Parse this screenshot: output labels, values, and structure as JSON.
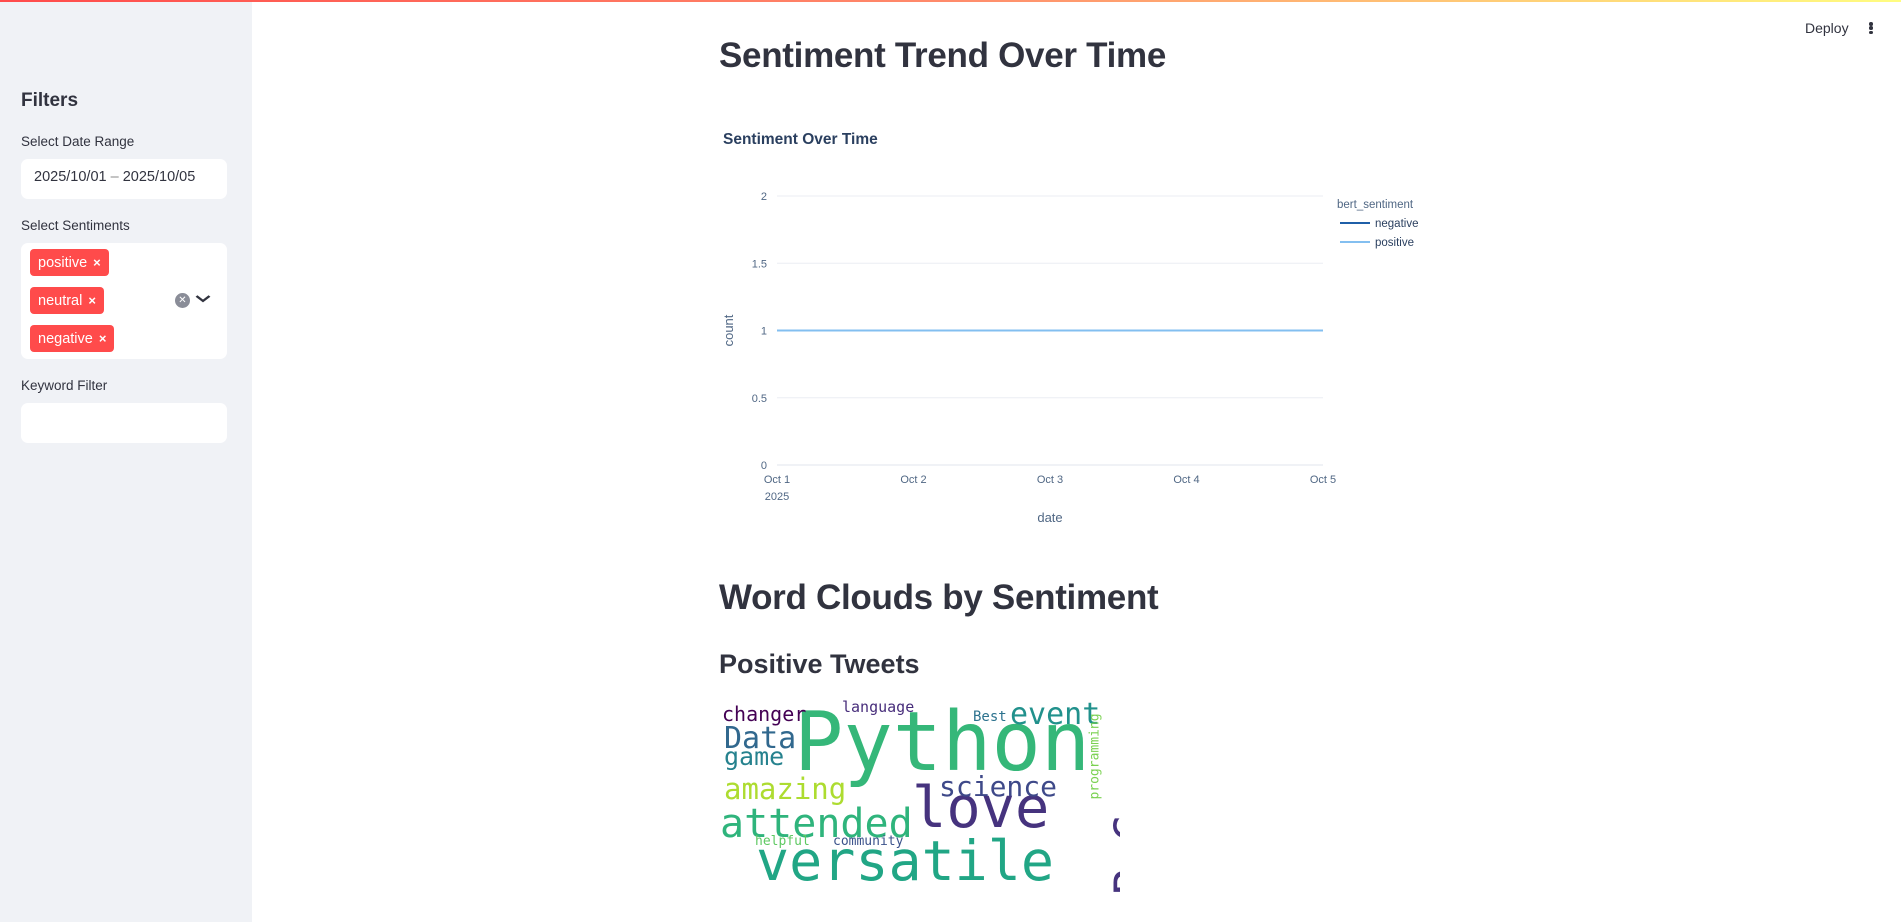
{
  "app": {
    "deploy_label": "Deploy",
    "accent_color": "#ff4b4b"
  },
  "sidebar": {
    "title": "Filters",
    "date_range": {
      "label": "Select Date Range",
      "start": "2025/10/01",
      "separator": "–",
      "end": "2025/10/05"
    },
    "sentiments": {
      "label": "Select Sentiments",
      "selected": [
        "positive",
        "neutral",
        "negative"
      ],
      "remove_glyph": "×"
    },
    "keyword": {
      "label": "Keyword Filter",
      "value": ""
    }
  },
  "main": {
    "trend_heading": "Sentiment Trend Over Time",
    "wordcloud_heading": "Word Clouds by Sentiment",
    "positive_heading": "Positive Tweets",
    "wordcloud_words": [
      {
        "text": "Python",
        "color": "#35b779"
      },
      {
        "text": "versatile",
        "color": "#21a685"
      },
      {
        "text": "love",
        "color": "#46337e"
      },
      {
        "text": "attended",
        "color": "#2fb47c"
      },
      {
        "text": "PyCon",
        "color": "#46337e"
      },
      {
        "text": "science",
        "color": "#3e4989"
      },
      {
        "text": "amazing",
        "color": "#addc30"
      },
      {
        "text": "event",
        "color": "#21918c"
      },
      {
        "text": "Data",
        "color": "#31688e"
      },
      {
        "text": "game",
        "color": "#26828e"
      },
      {
        "text": "changer",
        "color": "#440154"
      },
      {
        "text": "language",
        "color": "#472d7b"
      },
      {
        "text": "Best",
        "color": "#2c728e"
      },
      {
        "text": "programming",
        "color": "#7ad151"
      },
      {
        "text": "helpful",
        "color": "#5ec962"
      },
      {
        "text": "community",
        "color": "#3b528b"
      }
    ]
  },
  "chart_data": {
    "type": "line",
    "title": "Sentiment Over Time",
    "xlabel": "date",
    "ylabel": "count",
    "x": [
      "2025-10-01",
      "2025-10-02",
      "2025-10-03",
      "2025-10-04",
      "2025-10-05"
    ],
    "x_tick_labels": [
      "Oct 1",
      "Oct 2",
      "Oct 3",
      "Oct 4",
      "Oct 5"
    ],
    "x_year_label": "2025",
    "y_ticks": [
      "0",
      "0.5",
      "1",
      "1.5",
      "2"
    ],
    "ylim": [
      0,
      2
    ],
    "legend_title": "bert_sentiment",
    "legend_position": "top-right",
    "grid": true,
    "series": [
      {
        "name": "negative",
        "color": "#1f5fa8",
        "values": [
          1,
          1,
          1,
          1,
          1
        ]
      },
      {
        "name": "positive",
        "color": "#83bff0",
        "values": [
          1,
          1,
          1,
          1,
          1
        ]
      }
    ]
  }
}
